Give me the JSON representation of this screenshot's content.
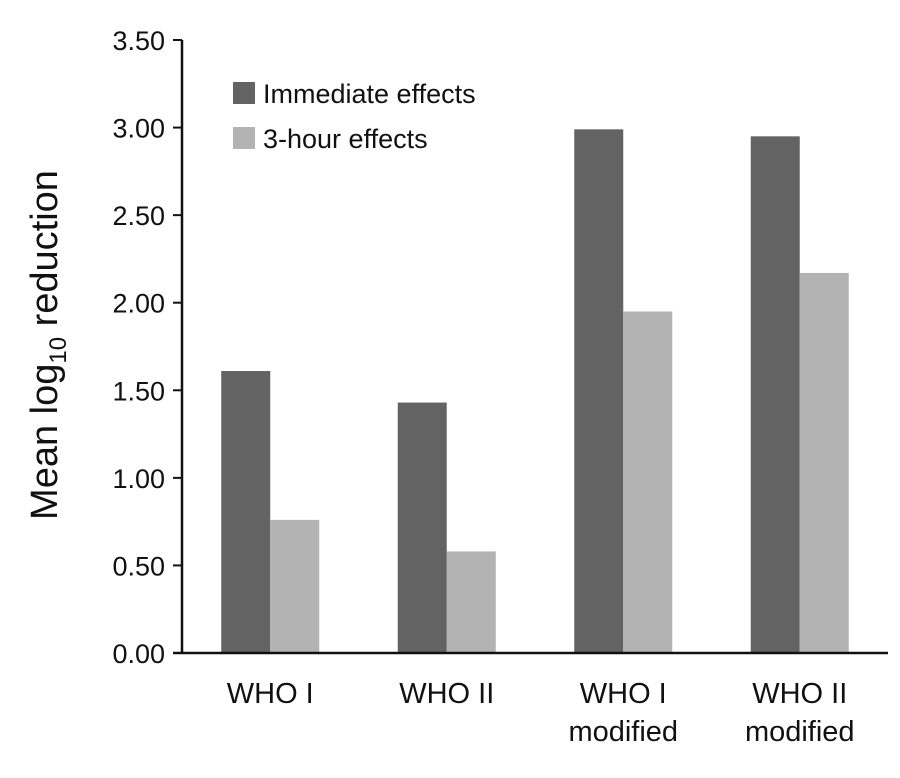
{
  "chart_data": {
    "type": "bar",
    "categories": [
      [
        "WHO I"
      ],
      [
        "WHO II"
      ],
      [
        "WHO I",
        "modified"
      ],
      [
        "WHO II",
        "modified"
      ]
    ],
    "series": [
      {
        "name": "Immediate effects",
        "values": [
          1.61,
          1.43,
          2.99,
          2.95
        ],
        "color": "#636363"
      },
      {
        "name": "3-hour effects",
        "values": [
          0.76,
          0.58,
          1.95,
          2.17
        ],
        "color": "#b3b3b3"
      }
    ],
    "ylabel": {
      "main": "Mean log",
      "sub": "10",
      "rest": " reduction"
    },
    "xlabel": "",
    "ylim": [
      0,
      3.5
    ],
    "yticks": [
      "0.00",
      "0.50",
      "1.00",
      "1.50",
      "2.00",
      "2.50",
      "3.00",
      "3.50"
    ],
    "grid": false,
    "legend_position": "top-left"
  }
}
